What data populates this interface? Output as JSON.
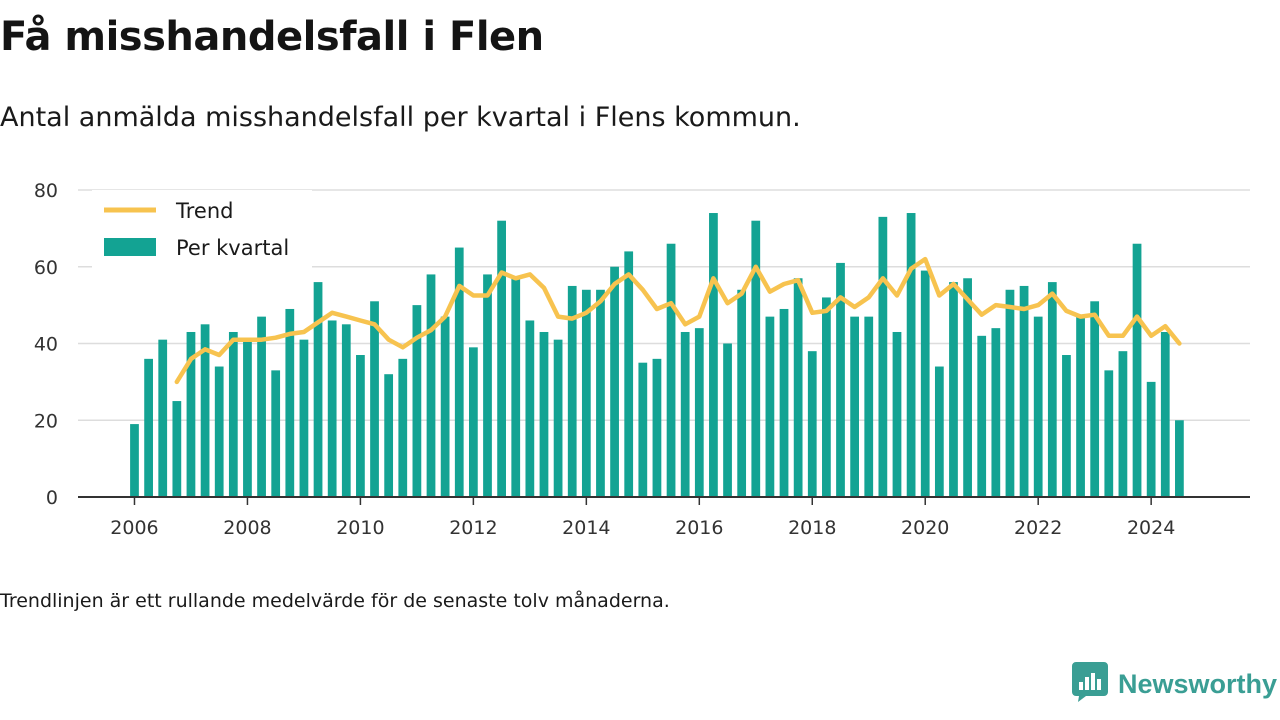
{
  "title": "Få misshandelsfall i Flen",
  "subtitle": "Antal anmälda misshandelsfall per kvartal i Flens kommun.",
  "note": "Trendlinjen är ett rullande medelvärde för de senaste tolv månaderna.",
  "brand": {
    "name": "Newsworthy",
    "icon": "newsworthy-logo-icon"
  },
  "colors": {
    "bars": "#13a393",
    "trend": "#f7c34f",
    "grid": "#dddddd",
    "axis": "#333333"
  },
  "chart_data": {
    "type": "bar",
    "x_ticks": [
      "2006",
      "2008",
      "2010",
      "2012",
      "2014",
      "2016",
      "2018",
      "2020",
      "2022",
      "2024"
    ],
    "y_ticks": [
      "0",
      "20",
      "40",
      "60",
      "80"
    ],
    "ylim": [
      0,
      80
    ],
    "xlim": [
      "2005-01",
      "2025-10"
    ],
    "grid": true,
    "legend": "top-left",
    "series": [
      {
        "name": "Trend",
        "type": "line",
        "x": [
          "2006-10",
          "2007-01",
          "2007-04",
          "2007-07",
          "2007-10",
          "2008-01",
          "2008-04",
          "2008-07",
          "2008-10",
          "2009-01",
          "2009-04",
          "2009-07",
          "2009-10",
          "2010-01",
          "2010-04",
          "2010-07",
          "2010-10",
          "2011-01",
          "2011-04",
          "2011-07",
          "2011-10",
          "2012-01",
          "2012-04",
          "2012-07",
          "2012-10",
          "2013-01",
          "2013-04",
          "2013-07",
          "2013-10",
          "2014-01",
          "2014-04",
          "2014-07",
          "2014-10",
          "2015-01",
          "2015-04",
          "2015-07",
          "2015-10",
          "2016-01",
          "2016-04",
          "2016-07",
          "2016-10",
          "2017-01",
          "2017-04",
          "2017-07",
          "2017-10",
          "2018-01",
          "2018-04",
          "2018-07",
          "2018-10",
          "2019-01",
          "2019-04",
          "2019-07",
          "2019-10",
          "2020-01",
          "2020-04",
          "2020-07",
          "2020-10",
          "2021-01",
          "2021-04",
          "2021-07",
          "2021-10",
          "2022-01",
          "2022-04",
          "2022-07",
          "2022-10",
          "2023-01",
          "2023-04",
          "2023-07",
          "2023-10",
          "2024-01",
          "2024-04",
          "2024-07"
        ],
        "values": [
          30,
          36,
          38.5,
          37,
          41,
          41,
          41,
          41.5,
          42.5,
          43,
          45.5,
          48,
          47,
          46,
          45,
          41,
          39,
          41.5,
          43.5,
          47,
          55,
          52.5,
          52.5,
          58.5,
          57,
          58,
          54.5,
          47,
          46.5,
          48,
          51,
          55.5,
          58,
          54,
          49,
          50.5,
          45,
          47,
          57,
          50.5,
          53,
          60,
          53.5,
          55.5,
          56.5,
          48,
          48.5,
          52,
          49.5,
          52,
          57,
          52.5,
          59.5,
          62,
          52.5,
          55.5,
          51.5,
          47.5,
          50,
          49.5,
          49,
          50,
          53,
          48.5,
          47,
          47.5,
          42,
          42,
          47,
          42,
          44.5,
          40
        ]
      },
      {
        "name": "Per kvartal",
        "type": "bar",
        "x": [
          "2006-01",
          "2006-04",
          "2006-07",
          "2006-10",
          "2007-01",
          "2007-04",
          "2007-07",
          "2007-10",
          "2008-01",
          "2008-04",
          "2008-07",
          "2008-10",
          "2009-01",
          "2009-04",
          "2009-07",
          "2009-10",
          "2010-01",
          "2010-04",
          "2010-07",
          "2010-10",
          "2011-01",
          "2011-04",
          "2011-07",
          "2011-10",
          "2012-01",
          "2012-04",
          "2012-07",
          "2012-10",
          "2013-01",
          "2013-04",
          "2013-07",
          "2013-10",
          "2014-01",
          "2014-04",
          "2014-07",
          "2014-10",
          "2015-01",
          "2015-04",
          "2015-07",
          "2015-10",
          "2016-01",
          "2016-04",
          "2016-07",
          "2016-10",
          "2017-01",
          "2017-04",
          "2017-07",
          "2017-10",
          "2018-01",
          "2018-04",
          "2018-07",
          "2018-10",
          "2019-01",
          "2019-04",
          "2019-07",
          "2019-10",
          "2020-01",
          "2020-04",
          "2020-07",
          "2020-10",
          "2021-01",
          "2021-04",
          "2021-07",
          "2021-10",
          "2022-01",
          "2022-04",
          "2022-07",
          "2022-10",
          "2023-01",
          "2023-04",
          "2023-07",
          "2023-10",
          "2024-01",
          "2024-04",
          "2024-07"
        ],
        "values": [
          19,
          36,
          41,
          25,
          43,
          45,
          34,
          43,
          41,
          47,
          33,
          49,
          41,
          56,
          46,
          45,
          37,
          51,
          32,
          36,
          50,
          58,
          47,
          65,
          39,
          58,
          72,
          57,
          46,
          43,
          41,
          55,
          54,
          54,
          60,
          64,
          35,
          36,
          66,
          43,
          44,
          74,
          40,
          54,
          72,
          47,
          49,
          57,
          38,
          52,
          61,
          47,
          47,
          73,
          43,
          74,
          59,
          34,
          56,
          57,
          42,
          44,
          54,
          55,
          47,
          56,
          37,
          47,
          51,
          33,
          38,
          66,
          30,
          43,
          20
        ]
      }
    ]
  }
}
